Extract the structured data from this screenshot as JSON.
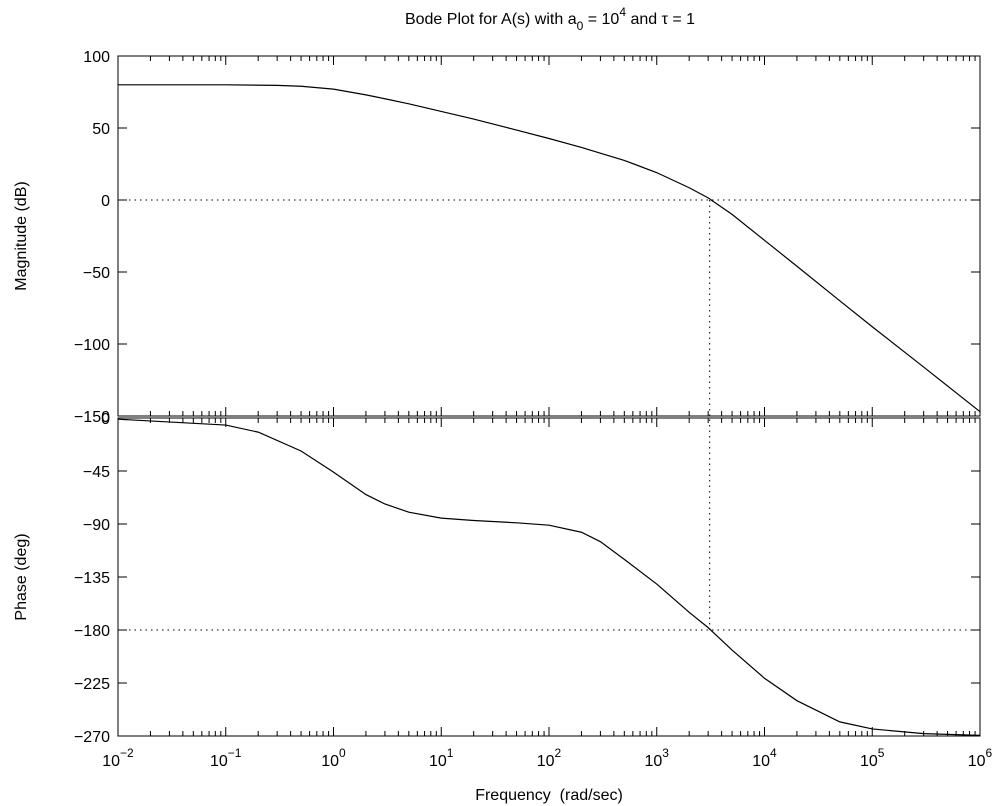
{
  "chart_data": [
    {
      "type": "line",
      "panel": "magnitude",
      "title": {
        "text": "Bode Plot for A(s) with a",
        "subscript": "0",
        "middle": " = 10",
        "superscript": "4",
        "tail": " and τ = 1"
      },
      "ylabel": "Magnitude (dB)",
      "xlabel": "",
      "xscale": "log",
      "xlim": [
        0.01,
        1000000
      ],
      "ylim": [
        -150,
        100
      ],
      "yticks": [
        100,
        50,
        0,
        -50,
        -100,
        -150
      ],
      "ytick_labels": [
        "100",
        "50",
        "0",
        "−50",
        "−100",
        "−150"
      ],
      "grid": false,
      "series": [
        {
          "color": "#000000",
          "x": [
            0.01,
            0.1,
            0.3,
            0.5,
            1,
            2,
            3,
            5,
            10,
            20,
            50,
            100,
            200,
            500,
            1000,
            2000,
            3000,
            5000,
            10000,
            20000,
            50000,
            100000,
            300000,
            1000000
          ],
          "y": [
            80,
            80,
            79.6,
            79.0,
            77,
            73,
            70.3,
            66.8,
            61.5,
            56.2,
            48.6,
            42.7,
            36.5,
            27.5,
            19,
            8.5,
            1.5,
            -10,
            -28,
            -46,
            -70,
            -88,
            -116,
            -147
          ]
        }
      ],
      "reference_lines": [
        {
          "orientation": "horizontal",
          "y": 0,
          "style": "dotted"
        },
        {
          "orientation": "vertical",
          "x": 3100,
          "y_from": -150,
          "y_to": 0,
          "style": "dotted"
        }
      ]
    },
    {
      "type": "line",
      "panel": "phase",
      "title": "",
      "ylabel": "Phase (deg)",
      "xlabel": "Frequency  (rad/sec)",
      "xscale": "log",
      "xlim": [
        0.01,
        1000000
      ],
      "ylim": [
        -270,
        0
      ],
      "yticks": [
        0,
        -45,
        -90,
        -135,
        -180,
        -225,
        -270
      ],
      "ytick_labels": [
        "0",
        "−45",
        "−90",
        "−135",
        "−180",
        "−225",
        "−270"
      ],
      "xticks": [
        0.01,
        0.1,
        1,
        10,
        100,
        1000,
        10000,
        100000,
        1000000
      ],
      "xtick_labels": [
        {
          "base": "10",
          "exp": "−2"
        },
        {
          "base": "10",
          "exp": "−1"
        },
        {
          "base": "10",
          "exp": "0"
        },
        {
          "base": "10",
          "exp": "1"
        },
        {
          "base": "10",
          "exp": "2"
        },
        {
          "base": "10",
          "exp": "3"
        },
        {
          "base": "10",
          "exp": "4"
        },
        {
          "base": "10",
          "exp": "5"
        },
        {
          "base": "10",
          "exp": "6"
        }
      ],
      "grid": false,
      "series": [
        {
          "color": "#000000",
          "x": [
            0.01,
            0.1,
            0.2,
            0.5,
            1,
            2,
            3,
            5,
            10,
            20,
            50,
            100,
            200,
            300,
            500,
            1000,
            2000,
            3000,
            5000,
            10000,
            20000,
            50000,
            100000,
            300000,
            1000000
          ],
          "y": [
            -1,
            -6,
            -12,
            -28,
            -46,
            -65,
            -73,
            -80,
            -85,
            -87,
            -89,
            -91,
            -97,
            -105,
            -120,
            -141,
            -165,
            -178,
            -197,
            -221,
            -240,
            -258,
            -264,
            -268,
            -269.5
          ]
        }
      ],
      "reference_lines": [
        {
          "orientation": "horizontal",
          "y": -180,
          "style": "dotted"
        },
        {
          "orientation": "vertical",
          "x": 3100,
          "y_from": -180,
          "y_to": 0,
          "style": "dotted"
        }
      ]
    }
  ]
}
